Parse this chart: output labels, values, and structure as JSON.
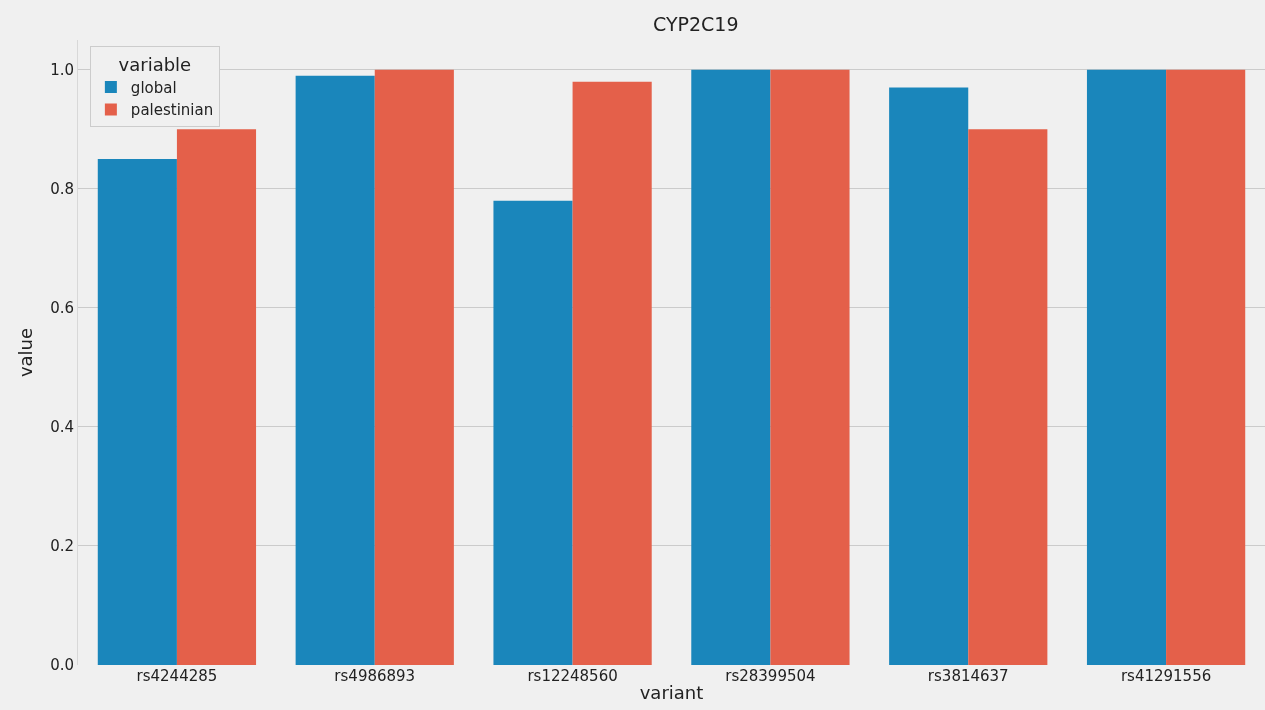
{
  "chart_data": {
    "type": "bar",
    "title": "CYP2C19",
    "xlabel": "variant",
    "ylabel": "value",
    "legend_title": "variable",
    "categories": [
      "rs4244285",
      "rs4986893",
      "rs12248560",
      "rs28399504",
      "rs3814637",
      "rs41291556"
    ],
    "series": [
      {
        "name": "global",
        "color": "#1a86bb",
        "values": [
          0.85,
          0.99,
          0.78,
          1.0,
          0.97,
          1.0
        ]
      },
      {
        "name": "palestinian",
        "color": "#e4604a",
        "values": [
          0.9,
          1.0,
          0.98,
          1.0,
          0.9,
          1.0
        ]
      }
    ],
    "ylim": [
      0,
      1.05
    ],
    "yticks": [
      {
        "value": 0,
        "label": "0.0"
      },
      {
        "value": 0.2,
        "label": "0.2"
      },
      {
        "value": 0.4,
        "label": "0.4"
      },
      {
        "value": 0.6,
        "label": "0.6"
      },
      {
        "value": 0.8,
        "label": "0.8"
      },
      {
        "value": 1,
        "label": "1.0"
      }
    ],
    "grid": "y",
    "legend": "top left"
  }
}
